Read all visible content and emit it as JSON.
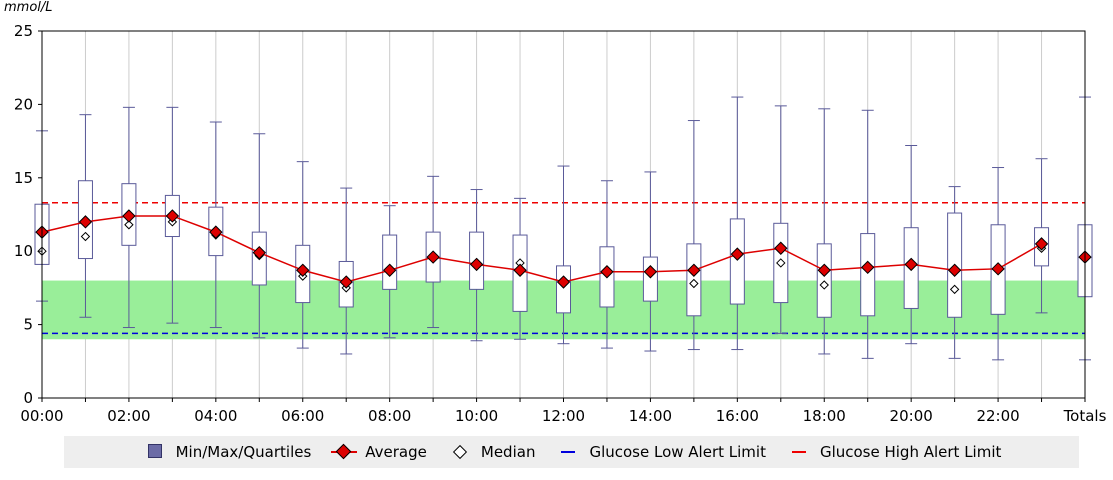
{
  "unit_label": "mmol/L",
  "legend": {
    "box_label": "Min/Max/Quartiles",
    "average_label": "Average",
    "median_label": "Median",
    "low_label": "Glucose Low Alert Limit",
    "high_label": "Glucose High Alert Limit"
  },
  "colors": {
    "box_fill": "#ffffff",
    "box_stroke": "#5a5a99",
    "average": "#dd0000",
    "target_band": "#99ee99",
    "low_limit": "#0000dd",
    "high_limit": "#ee0000",
    "grid": "#cccccc"
  },
  "chart_data": {
    "type": "box",
    "y_unit": "mmol/L",
    "ylim": [
      0,
      25
    ],
    "yticks": [
      0,
      5,
      10,
      15,
      20,
      25
    ],
    "grid": "vertical",
    "legend_position": "bottom",
    "categories": [
      "00:00",
      "01:00",
      "02:00",
      "03:00",
      "04:00",
      "05:00",
      "06:00",
      "07:00",
      "08:00",
      "09:00",
      "10:00",
      "11:00",
      "12:00",
      "13:00",
      "14:00",
      "15:00",
      "16:00",
      "17:00",
      "18:00",
      "19:00",
      "20:00",
      "21:00",
      "22:00",
      "23:00",
      "Totals"
    ],
    "x_tick_labels": [
      "00:00",
      "",
      "02:00",
      "",
      "04:00",
      "",
      "06:00",
      "",
      "08:00",
      "",
      "10:00",
      "",
      "12:00",
      "",
      "14:00",
      "",
      "16:00",
      "",
      "18:00",
      "",
      "20:00",
      "",
      "22:00",
      "",
      "Totals"
    ],
    "min": [
      6.6,
      5.5,
      4.8,
      5.1,
      4.8,
      4.1,
      3.4,
      3.0,
      4.1,
      4.8,
      3.9,
      4.0,
      3.7,
      3.4,
      3.2,
      3.3,
      3.3,
      4.4,
      3.0,
      2.7,
      3.7,
      2.7,
      2.6,
      5.8,
      2.6
    ],
    "q1": [
      9.1,
      9.5,
      10.4,
      11.0,
      9.7,
      7.7,
      6.5,
      6.2,
      7.4,
      7.9,
      7.4,
      5.9,
      5.8,
      6.2,
      6.6,
      5.6,
      6.4,
      6.5,
      5.5,
      5.6,
      6.1,
      5.5,
      5.7,
      9.0,
      6.9
    ],
    "q3": [
      13.2,
      14.8,
      14.6,
      13.8,
      13.0,
      11.3,
      10.4,
      9.3,
      11.1,
      11.3,
      11.3,
      11.1,
      9.0,
      10.3,
      9.6,
      10.5,
      12.2,
      11.9,
      10.5,
      11.2,
      11.6,
      12.6,
      11.8,
      11.6,
      11.8
    ],
    "max": [
      18.2,
      19.3,
      19.8,
      19.8,
      18.8,
      18.0,
      16.1,
      14.3,
      13.1,
      15.1,
      14.2,
      13.6,
      15.8,
      14.8,
      15.4,
      18.9,
      20.5,
      19.9,
      19.7,
      19.6,
      17.2,
      14.4,
      15.7,
      16.3,
      20.5
    ],
    "median": [
      10.0,
      11.0,
      11.8,
      12.0,
      11.1,
      9.7,
      8.3,
      7.5,
      8.8,
      9.7,
      9.0,
      9.2,
      7.8,
      8.5,
      8.6,
      7.8,
      9.7,
      9.2,
      7.7,
      8.8,
      9.2,
      7.4,
      8.8,
      10.2,
      9.6
    ],
    "average": [
      11.3,
      12.0,
      12.4,
      12.4,
      11.3,
      9.9,
      8.7,
      7.9,
      8.7,
      9.6,
      9.1,
      8.7,
      7.9,
      8.6,
      8.6,
      8.7,
      9.8,
      10.2,
      8.7,
      8.9,
      9.1,
      8.7,
      8.8,
      10.5,
      9.6
    ],
    "target_range": [
      4.0,
      8.0
    ],
    "low_alert_limit": 4.4,
    "high_alert_limit": 13.3
  }
}
